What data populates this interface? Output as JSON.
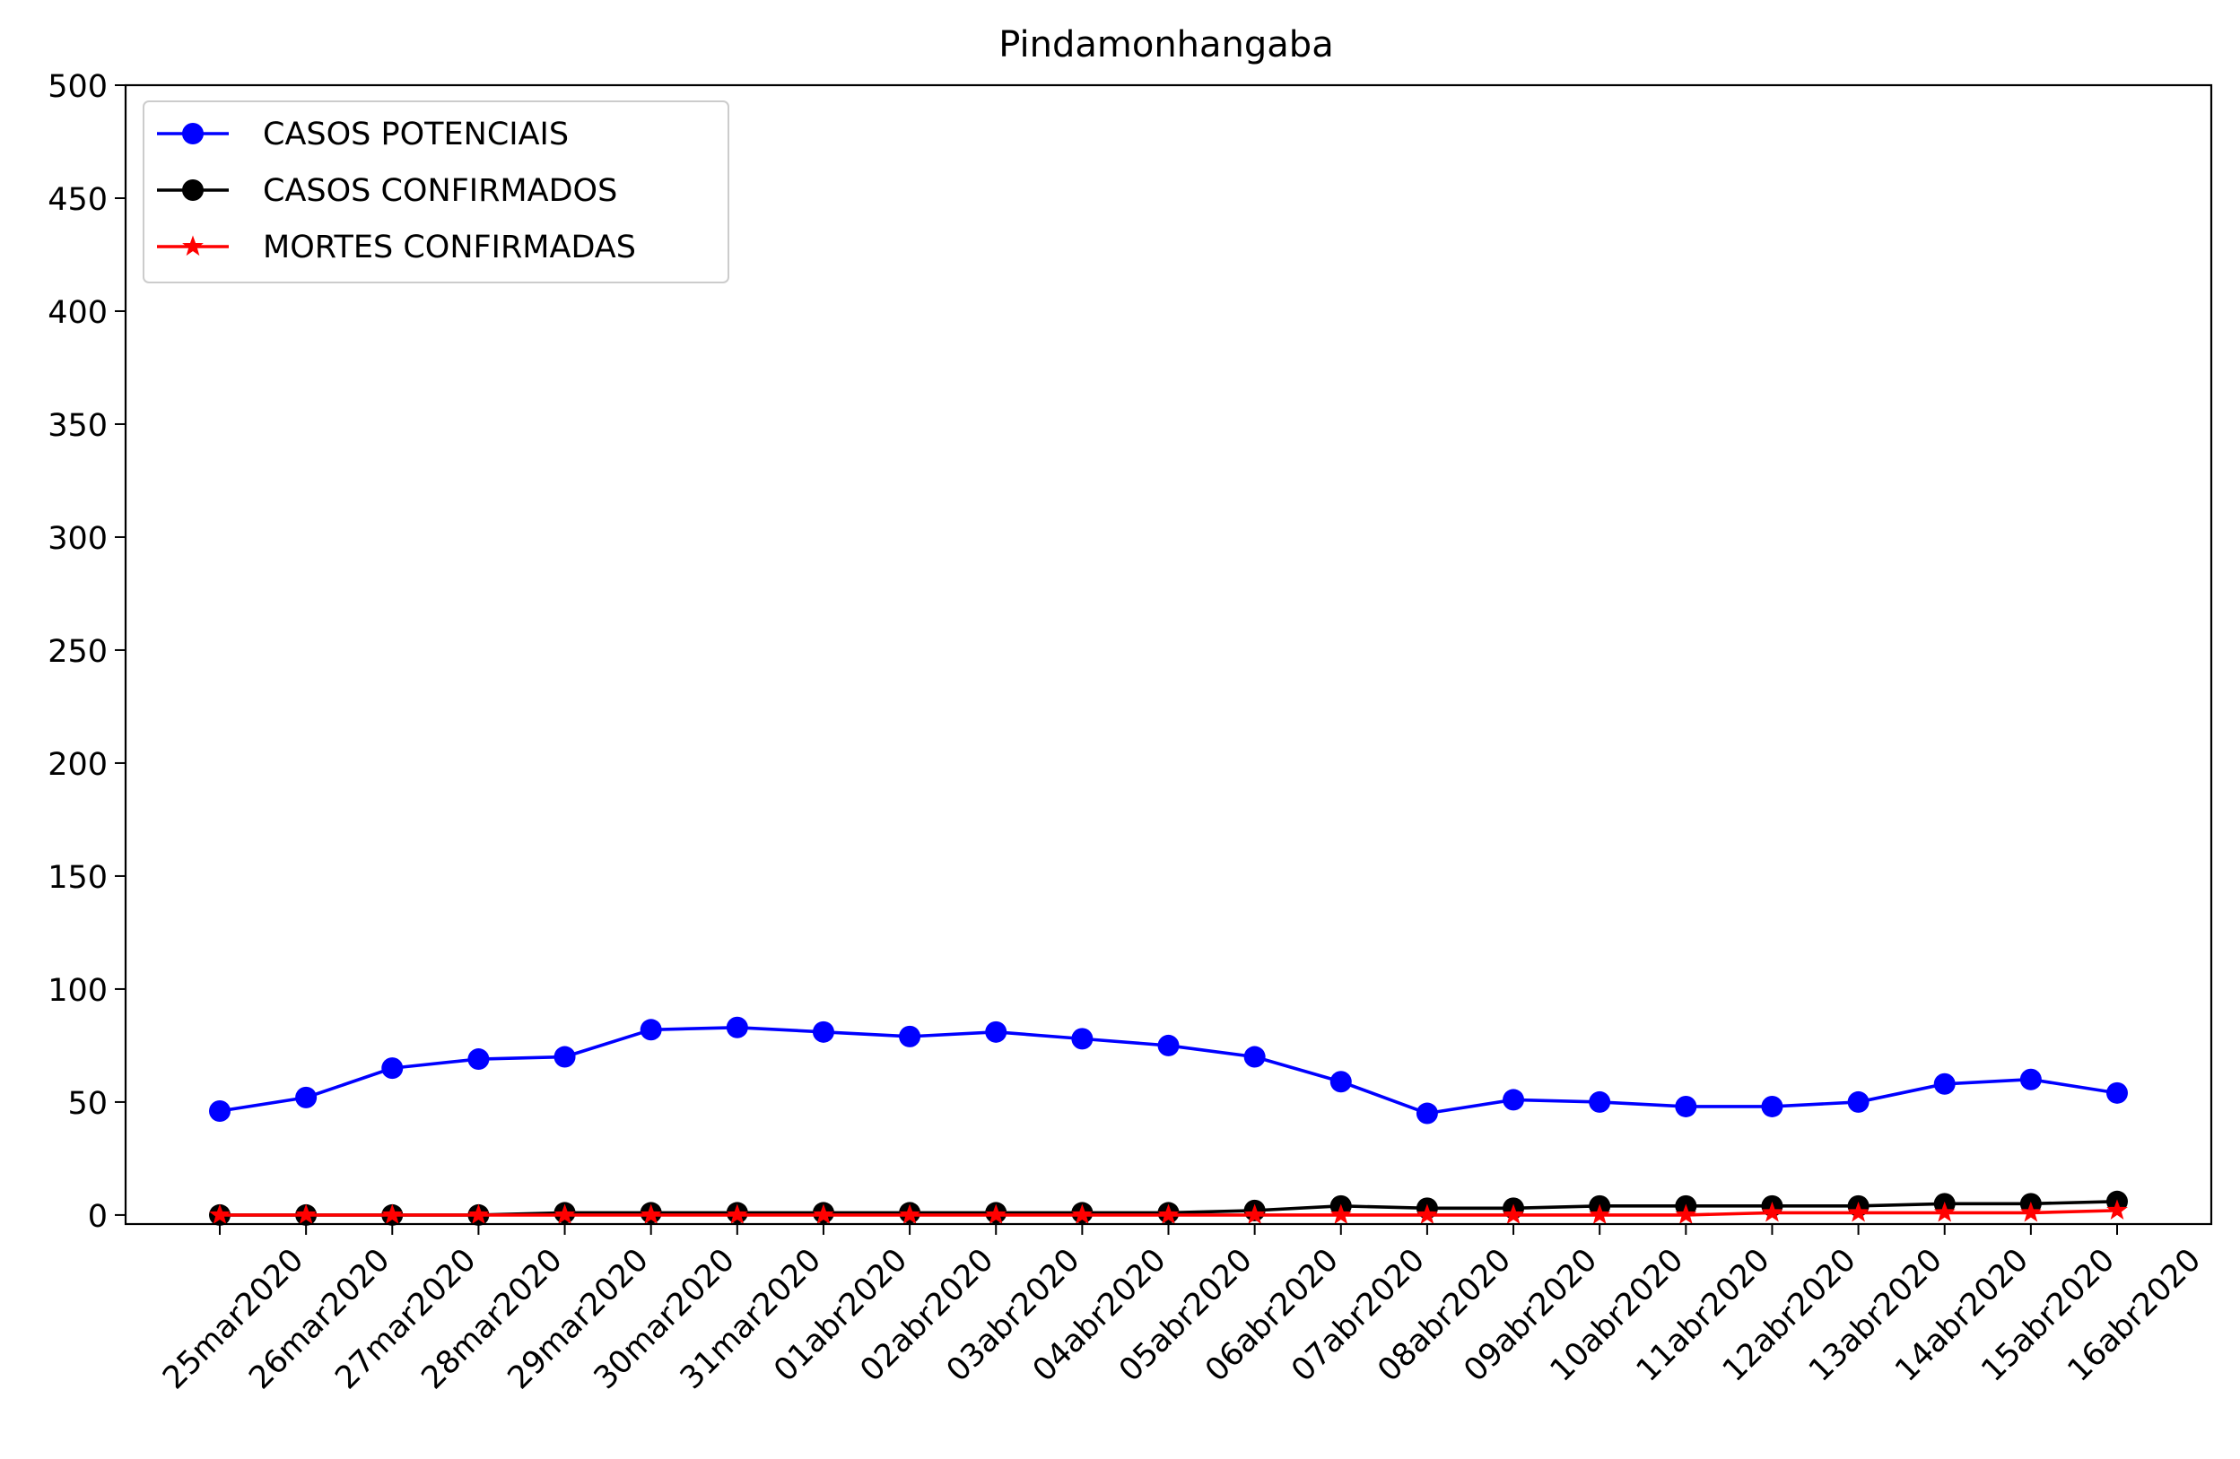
{
  "chart_data": {
    "type": "line",
    "title": "Pindamonhangaba",
    "xlabel": "",
    "ylabel": "",
    "categories": [
      "25mar2020",
      "26mar2020",
      "27mar2020",
      "28mar2020",
      "29mar2020",
      "30mar2020",
      "31mar2020",
      "01abr2020",
      "02abr2020",
      "03abr2020",
      "04abr2020",
      "05abr2020",
      "06abr2020",
      "07abr2020",
      "08abr2020",
      "09abr2020",
      "10abr2020",
      "11abr2020",
      "12abr2020",
      "13abr2020",
      "14abr2020",
      "15abr2020",
      "16abr2020"
    ],
    "ylim": [
      -4,
      500
    ],
    "yticks": [
      0,
      50,
      100,
      150,
      200,
      250,
      300,
      350,
      400,
      450,
      500
    ],
    "grid": false,
    "legend_position": "top-left",
    "series": [
      {
        "name": "CASOS POTENCIAIS",
        "color": "#0000ff",
        "marker": "circle",
        "values": [
          46,
          52,
          65,
          69,
          70,
          82,
          83,
          81,
          79,
          81,
          78,
          75,
          70,
          59,
          45,
          51,
          50,
          48,
          48,
          50,
          58,
          60,
          54
        ]
      },
      {
        "name": "CASOS CONFIRMADOS",
        "color": "#000000",
        "marker": "circle",
        "values": [
          0,
          0,
          0,
          0,
          1,
          1,
          1,
          1,
          1,
          1,
          1,
          1,
          2,
          4,
          3,
          3,
          4,
          4,
          4,
          4,
          5,
          5,
          6
        ]
      },
      {
        "name": "MORTES CONFIRMADAS",
        "color": "#ff0000",
        "marker": "star",
        "values": [
          0,
          0,
          0,
          0,
          0,
          0,
          0,
          0,
          0,
          0,
          0,
          0,
          0,
          0,
          0,
          0,
          0,
          0,
          1,
          1,
          1,
          1,
          2
        ]
      }
    ]
  }
}
